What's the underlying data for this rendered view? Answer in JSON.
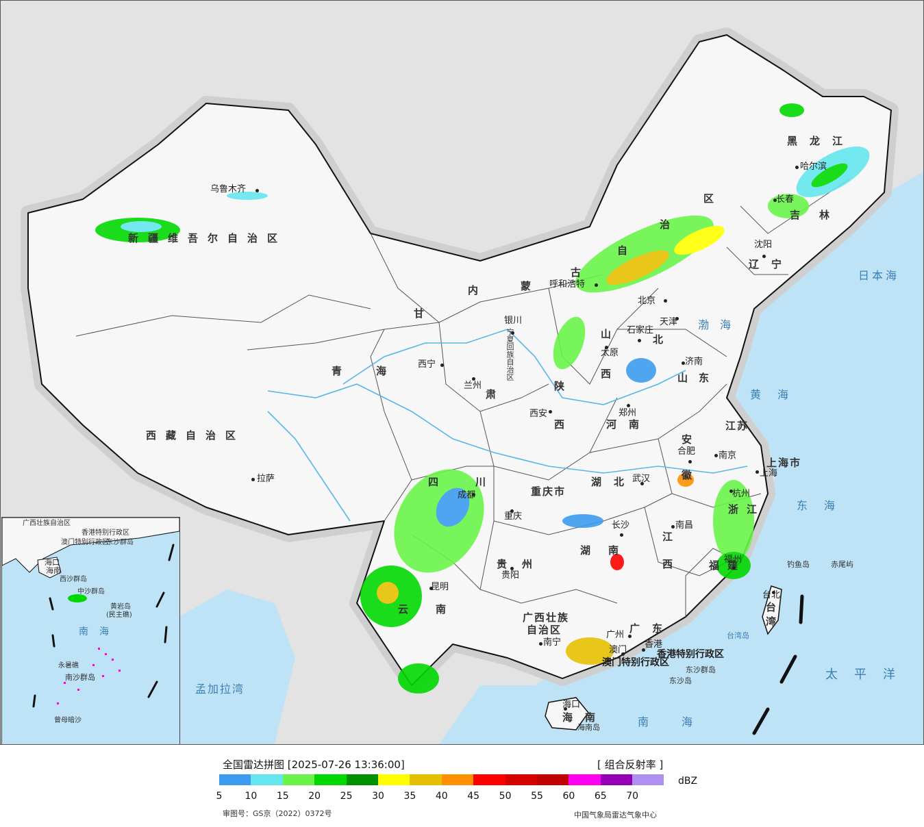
{
  "colors": {
    "sea": "#bfe3f6",
    "land_outside": "#e3e3e3",
    "china_land": "#f7f7f7",
    "border": "#111111",
    "river": "#58b6e8"
  },
  "map_labels": {
    "provinces": [
      {
        "id": "xinjiang",
        "text": "新疆维吾尔自治区"
      },
      {
        "id": "xizang",
        "text": "西藏自治区"
      },
      {
        "id": "qinghai",
        "text": "青海"
      },
      {
        "id": "gansu",
        "text": "甘"
      },
      {
        "id": "neimenggu-1",
        "text": "内"
      },
      {
        "id": "neimenggu-2",
        "text": "蒙"
      },
      {
        "id": "neimenggu-3",
        "text": "古"
      },
      {
        "id": "neimenggu-4",
        "text": "自"
      },
      {
        "id": "neimenggu-5",
        "text": "治"
      },
      {
        "id": "neimenggu-6",
        "text": "区"
      },
      {
        "id": "heilongjiang",
        "text": "黑龙江"
      },
      {
        "id": "jilin",
        "text": "吉林"
      },
      {
        "id": "liaoning",
        "text": "辽宁"
      },
      {
        "id": "hebei",
        "text": "北"
      },
      {
        "id": "shanxi-1",
        "text": "山"
      },
      {
        "id": "shanxi-2",
        "text": "西"
      },
      {
        "id": "shaanxi-1",
        "text": "陕"
      },
      {
        "id": "shaanxi-2",
        "text": "西"
      },
      {
        "id": "shandong",
        "text": "山东"
      },
      {
        "id": "henan",
        "text": "河南"
      },
      {
        "id": "jiangsu",
        "text": "江苏"
      },
      {
        "id": "anhui-1",
        "text": "安"
      },
      {
        "id": "anhui-2",
        "text": "徽"
      },
      {
        "id": "shanghai",
        "text": "上海市"
      },
      {
        "id": "zhejiang",
        "text": "浙江"
      },
      {
        "id": "hubei",
        "text": "湖北"
      },
      {
        "id": "hunan",
        "text": "湖南"
      },
      {
        "id": "jiangxi-1",
        "text": "江"
      },
      {
        "id": "jiangxi-2",
        "text": "西"
      },
      {
        "id": "fujian",
        "text": "福建"
      },
      {
        "id": "sichuan",
        "text": "四川"
      },
      {
        "id": "chongqing",
        "text": "重庆市"
      },
      {
        "id": "guizhou",
        "text": "贵州"
      },
      {
        "id": "yunnan",
        "text": "云南"
      },
      {
        "id": "guangxi-1",
        "text": "广西壮族"
      },
      {
        "id": "guangxi-2",
        "text": "自治区"
      },
      {
        "id": "guangdong",
        "text": "广东"
      },
      {
        "id": "hainan",
        "text": "海南"
      },
      {
        "id": "taiwan",
        "text": "台湾"
      },
      {
        "id": "ningxia",
        "text": "宁夏回族自治区"
      },
      {
        "id": "gansu-2",
        "text": "肃"
      },
      {
        "id": "hk",
        "text": "香港特别行政区"
      },
      {
        "id": "macao",
        "text": "澳门特别行政区"
      }
    ],
    "cities": [
      {
        "id": "urumqi",
        "text": "乌鲁木齐"
      },
      {
        "id": "lhasa",
        "text": "拉萨"
      },
      {
        "id": "xining",
        "text": "西宁"
      },
      {
        "id": "lanzhou",
        "text": "兰州"
      },
      {
        "id": "yinchuan",
        "text": "银川"
      },
      {
        "id": "hohhot",
        "text": "呼和浩特"
      },
      {
        "id": "beijing",
        "text": "北京"
      },
      {
        "id": "tianjin",
        "text": "天津"
      },
      {
        "id": "shijiazhuang",
        "text": "石家庄"
      },
      {
        "id": "taiyuan",
        "text": "太原"
      },
      {
        "id": "jinan",
        "text": "济南"
      },
      {
        "id": "zhengzhou",
        "text": "郑州"
      },
      {
        "id": "xian",
        "text": "西安"
      },
      {
        "id": "harbin",
        "text": "哈尔滨"
      },
      {
        "id": "changchun",
        "text": "长春"
      },
      {
        "id": "shenyang",
        "text": "沈阳"
      },
      {
        "id": "nanjing",
        "text": "南京"
      },
      {
        "id": "hefei",
        "text": "合肥"
      },
      {
        "id": "shanghai-city",
        "text": "上海"
      },
      {
        "id": "hangzhou",
        "text": "杭州"
      },
      {
        "id": "wuhan",
        "text": "武汉"
      },
      {
        "id": "changsha",
        "text": "长沙"
      },
      {
        "id": "nanchang",
        "text": "南昌"
      },
      {
        "id": "fuzhou",
        "text": "福州"
      },
      {
        "id": "chengdu",
        "text": "成都"
      },
      {
        "id": "chongqing-city",
        "text": "重庆"
      },
      {
        "id": "guiyang",
        "text": "贵阳"
      },
      {
        "id": "kunming",
        "text": "昆明"
      },
      {
        "id": "nanning",
        "text": "南宁"
      },
      {
        "id": "guangzhou",
        "text": "广州"
      },
      {
        "id": "aomen",
        "text": "澳门"
      },
      {
        "id": "xianggang",
        "text": "香港"
      },
      {
        "id": "haikou",
        "text": "海口"
      },
      {
        "id": "taibei",
        "text": "台北"
      }
    ],
    "seas": [
      {
        "id": "ribenhai",
        "text": "日本海"
      },
      {
        "id": "bohai",
        "text": "渤海"
      },
      {
        "id": "huanghai",
        "text": "黄海"
      },
      {
        "id": "donghai",
        "text": "东海"
      },
      {
        "id": "taipingyang",
        "text": "太平洋"
      },
      {
        "id": "nanhai",
        "text": "南海"
      },
      {
        "id": "mengjialawan",
        "text": "孟加拉湾"
      }
    ],
    "islands": [
      {
        "id": "diaoyudao",
        "text": "钓鱼岛"
      },
      {
        "id": "chiweiyu",
        "text": "赤尾屿"
      },
      {
        "id": "taiwandao",
        "text": "台湾岛"
      },
      {
        "id": "dongsha",
        "text": "东沙群岛"
      },
      {
        "id": "dongshadao",
        "text": "东沙岛"
      },
      {
        "id": "hainandao",
        "text": "海南岛"
      }
    ]
  },
  "inset": {
    "labels": [
      {
        "id": "inset-nanhai",
        "text": "南海"
      },
      {
        "id": "inset-zhongsha",
        "text": "中沙群岛"
      },
      {
        "id": "inset-xisha",
        "text": "西沙群岛"
      },
      {
        "id": "inset-nansha",
        "text": "南沙群岛"
      },
      {
        "id": "inset-huangyan",
        "text": "黄岩岛"
      },
      {
        "id": "inset-minzhujiao",
        "text": "(民主礁)"
      },
      {
        "id": "inset-yongshu",
        "text": "永暑礁"
      },
      {
        "id": "inset-zengmu",
        "text": "曾母暗沙"
      },
      {
        "id": "inset-haikou",
        "text": "海口"
      },
      {
        "id": "inset-hainan",
        "text": "海南"
      },
      {
        "id": "inset-guangxi",
        "text": "广西壮族自治区"
      },
      {
        "id": "inset-xianggang",
        "text": "香港特别行政区"
      },
      {
        "id": "inset-aomen",
        "text": "澳门特别行政区"
      },
      {
        "id": "inset-dongsha",
        "text": "东沙群岛"
      }
    ]
  },
  "legend": {
    "title": "全国雷达拼图 [2025-07-26 13:36:00]",
    "product": "[ 组合反射率 ]",
    "unit": "dBZ",
    "review_number": "审图号：GS京（2022）0372号",
    "source": "中国气象局雷达气象中心",
    "scale": [
      {
        "value": 5,
        "color": "#3d9bef"
      },
      {
        "value": 10,
        "color": "#64e6ee"
      },
      {
        "value": 15,
        "color": "#6af44a"
      },
      {
        "value": 20,
        "color": "#00d800"
      },
      {
        "value": 25,
        "color": "#009100"
      },
      {
        "value": 30,
        "color": "#ffff00"
      },
      {
        "value": 35,
        "color": "#e6c000"
      },
      {
        "value": 40,
        "color": "#ff9000"
      },
      {
        "value": 45,
        "color": "#ff0000"
      },
      {
        "value": 50,
        "color": "#d70000"
      },
      {
        "value": 55,
        "color": "#c10000"
      },
      {
        "value": 60,
        "color": "#ff00f0"
      },
      {
        "value": 65,
        "color": "#9600b4"
      },
      {
        "value": 70,
        "color": "#ad90f0"
      }
    ],
    "tick_labels": [
      "5",
      "10",
      "15",
      "20",
      "25",
      "30",
      "35",
      "40",
      "45",
      "50",
      "55",
      "60",
      "65",
      "70"
    ]
  }
}
